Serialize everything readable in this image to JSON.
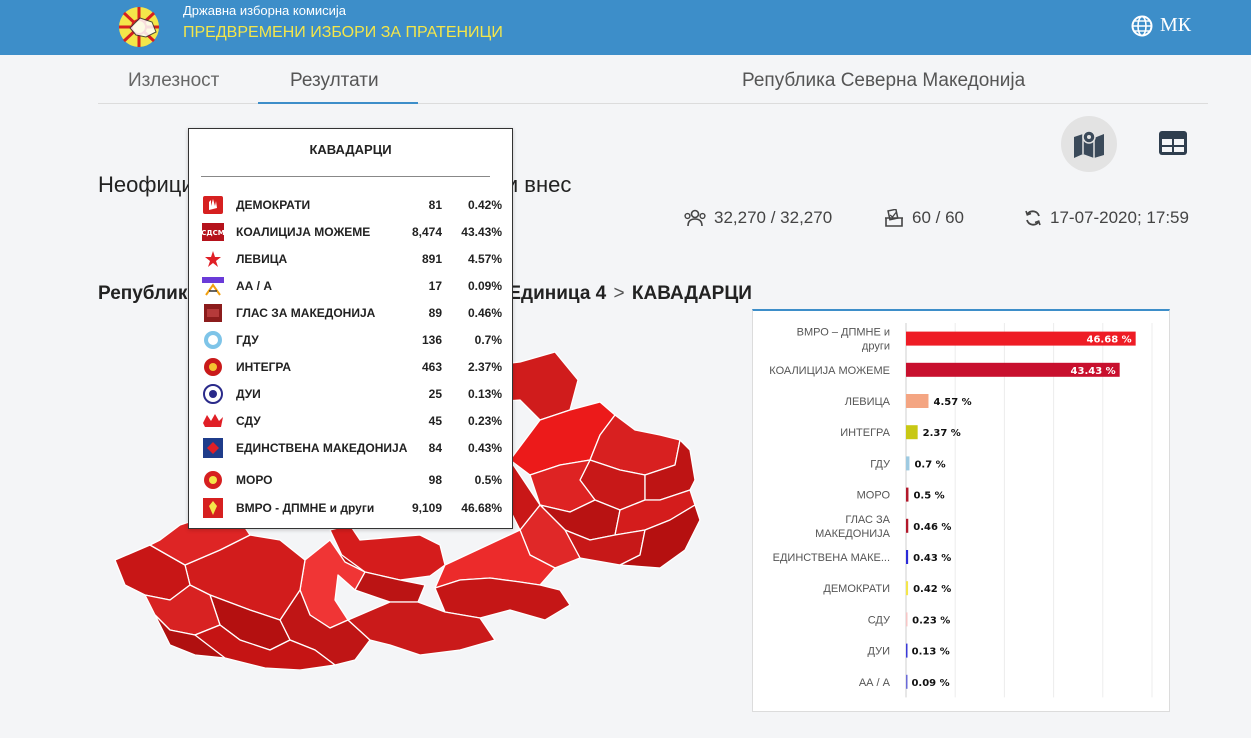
{
  "header": {
    "org_name": "Државна изборна комисија",
    "election_name": "ПРЕДВРЕМЕНИ ИЗБОРИ ЗА ПРАТЕНИЦИ",
    "language": "МК",
    "brand_color": "#3d8ec9",
    "accent_color": "#f4e64a"
  },
  "tabs": {
    "turnout": "Излезност",
    "results": "Резултати",
    "active": "results"
  },
  "country": "Република Северна Македонија",
  "heading": "Неофициjални резултати од електронски внес",
  "stats": {
    "voters": "32,270 / 32,270",
    "stations": "60 / 60",
    "updated": "17-07-2020; 17:59"
  },
  "breadcrumb": {
    "root": "Република Северна Македонија",
    "unit": "Изборна Единица 4",
    "municipality": "КАВАДАРЦИ"
  },
  "tooltip": {
    "title": "КАВАДАРЦИ",
    "rows": [
      {
        "party": "ДЕМОКРАТИ",
        "votes": "81",
        "pct": "0.42%",
        "logo": "democrats-logo"
      },
      {
        "party": "КОАЛИЦИЈА МОЖЕМЕ",
        "votes": "8,474",
        "pct": "43.43%",
        "logo": "sdsm-logo"
      },
      {
        "party": "ЛЕВИЦА",
        "votes": "891",
        "pct": "4.57%",
        "logo": "levica-logo"
      },
      {
        "party": "АА / А",
        "votes": "17",
        "pct": "0.09%",
        "logo": "aa-logo"
      },
      {
        "party": "ГЛАС ЗА МАКЕДОНИЈА",
        "votes": "89",
        "pct": "0.46%",
        "logo": "glas-logo"
      },
      {
        "party": "ГДУ",
        "votes": "136",
        "pct": "0.7%",
        "logo": "gdu-logo"
      },
      {
        "party": "ИНТЕГРА",
        "votes": "463",
        "pct": "2.37%",
        "logo": "integra-logo"
      },
      {
        "party": "ДУИ",
        "votes": "25",
        "pct": "0.13%",
        "logo": "dui-logo"
      },
      {
        "party": "СДУ",
        "votes": "45",
        "pct": "0.23%",
        "logo": "sdu-logo"
      },
      {
        "party": "ЕДИНСТВЕНА МАКЕДОНИЈА",
        "votes": "84",
        "pct": "0.43%",
        "logo": "edinstvena-logo"
      },
      {
        "party": "МОРО",
        "votes": "98",
        "pct": "0.5%",
        "logo": "moro-logo"
      },
      {
        "party": "ВМРО - ДПМНЕ и други",
        "votes": "9,109",
        "pct": "46.68%",
        "logo": "vmro-logo"
      }
    ]
  },
  "chart_data": {
    "type": "bar",
    "orientation": "horizontal",
    "categories": [
      [
        "ВМРО – ДПМНЕ и",
        "други"
      ],
      [
        "КОАЛИЦИЈА МОЖЕМЕ"
      ],
      [
        "ЛЕВИЦА"
      ],
      [
        "ИНТЕГРА"
      ],
      [
        "ГДУ"
      ],
      [
        "МОРО"
      ],
      [
        "ГЛАС ЗА",
        "МАКЕДОНИЈА"
      ],
      [
        "ЕДИНСТВЕНА МАКЕ..."
      ],
      [
        "ДЕМОКРАТИ"
      ],
      [
        "СДУ"
      ],
      [
        "ДУИ"
      ],
      [
        "АА / А"
      ]
    ],
    "values": [
      46.68,
      43.43,
      4.57,
      2.37,
      0.7,
      0.5,
      0.46,
      0.43,
      0.42,
      0.23,
      0.13,
      0.09
    ],
    "value_labels": [
      "46.68 %",
      "43.43 %",
      "4.57 %",
      "2.37 %",
      "0.7 %",
      "0.5 %",
      "0.46 %",
      "0.43 %",
      "0.42 %",
      "0.23 %",
      "0.13 %",
      "0.09 %"
    ],
    "colors": [
      "#ee1c25",
      "#c8102e",
      "#f4a582",
      "#c8c814",
      "#9ecae1",
      "#b2182b",
      "#b2182b",
      "#2b2bd8",
      "#f4e64a",
      "#f7c6c6",
      "#3a3ad8",
      "#6a6ad8"
    ],
    "xlim": [
      0,
      50
    ],
    "grid": true
  }
}
